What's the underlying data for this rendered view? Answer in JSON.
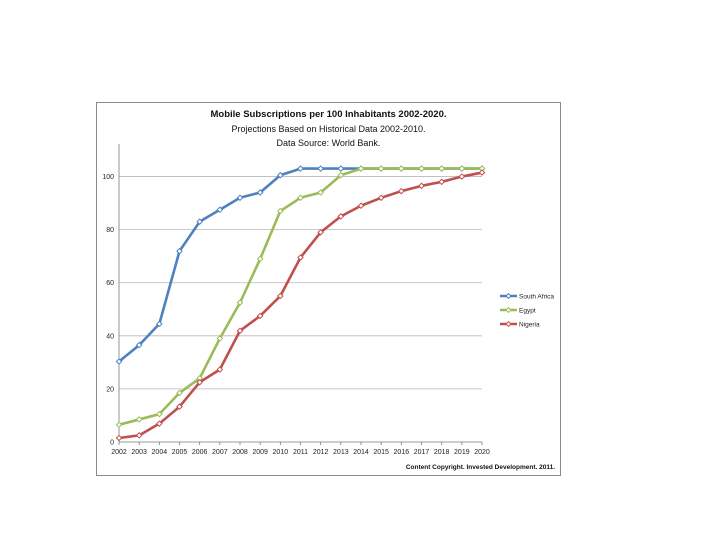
{
  "chart_data": {
    "type": "line",
    "title": "Mobile Subscriptions per 100 Inhabitants 2002-2020.",
    "subtitle": "Projections Based on Historical Data 2002-2010.",
    "source": "Data Source: World Bank.",
    "x": [
      "2002",
      "2003",
      "2004",
      "2005",
      "2006",
      "2007",
      "2008",
      "2009",
      "2010",
      "2011",
      "2012",
      "2013",
      "2014",
      "2015",
      "2016",
      "2017",
      "2018",
      "2019",
      "2020"
    ],
    "ylim": [
      0,
      110
    ],
    "yticks": [
      0,
      20,
      40,
      60,
      80,
      100
    ],
    "grid": true,
    "legend_position": "right",
    "series": [
      {
        "name": "South Africa",
        "color": "#4f81bd",
        "values": [
          30.3,
          36.5,
          44.5,
          71.9,
          83.0,
          87.5,
          92.0,
          94.0,
          100.5,
          103.0,
          103.0,
          103.0,
          103.0,
          103.0,
          103.0,
          103.0,
          103.0,
          103.0,
          103.0
        ]
      },
      {
        "name": "Egypt",
        "color": "#9bbb59",
        "values": [
          6.5,
          8.5,
          10.5,
          18.5,
          24.0,
          39.0,
          52.5,
          69.0,
          87.0,
          92.0,
          94.0,
          100.5,
          103.0,
          103.0,
          103.0,
          103.0,
          103.0,
          103.0,
          103.0
        ]
      },
      {
        "name": "Nigeria",
        "color": "#c0504d",
        "values": [
          1.5,
          2.5,
          6.9,
          13.3,
          22.5,
          27.3,
          41.9,
          47.5,
          55.0,
          69.5,
          79.0,
          85.0,
          89.0,
          92.0,
          94.5,
          96.5,
          98.0,
          100.0,
          101.5
        ]
      }
    ]
  },
  "credit": "Content Copyright. Invested Development. 2011."
}
